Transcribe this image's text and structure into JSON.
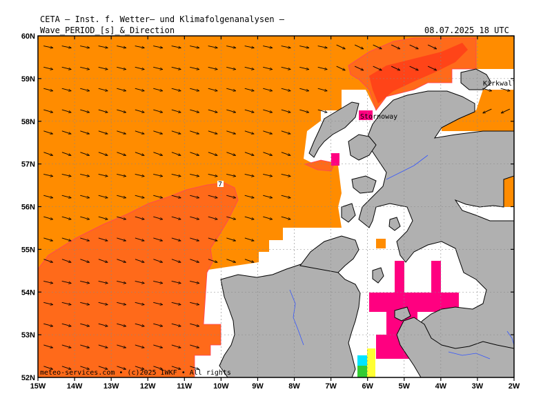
{
  "header": {
    "line1": "CETA – Inst. f. Wetter– und Klimafolgenanalysen –",
    "line2": "Wave_PERIOD_[s]_&_Direction",
    "datetime": "08.07.2025 18 UTC"
  },
  "axes": {
    "lon_labels": [
      "15W",
      "14W",
      "13W",
      "12W",
      "11W",
      "10W",
      "9W",
      "8W",
      "7W",
      "6W",
      "5W",
      "4W",
      "3W",
      "2W"
    ],
    "lat_labels": [
      "60N",
      "59N",
      "58N",
      "57N",
      "56N",
      "55N",
      "54N",
      "53N",
      "52N"
    ]
  },
  "map": {
    "lon_range": [
      -15,
      -2
    ],
    "lat_range": [
      52,
      60
    ],
    "contour_label": "7",
    "places": [
      "Stornoway",
      "Kirkwall"
    ],
    "colors": {
      "sea": "#ff8c00",
      "sea_high": "#ff5f1f",
      "sea_peak": "#ff4418",
      "land": "#b0b0b0",
      "coast": "#000000",
      "river": "#3355ff",
      "magenta": "#ff0080",
      "grid": "#999999",
      "arrow": "#000000"
    }
  },
  "footer": {
    "credit": "meteo-services.com • (c)2025 IWKF • All rights"
  }
}
